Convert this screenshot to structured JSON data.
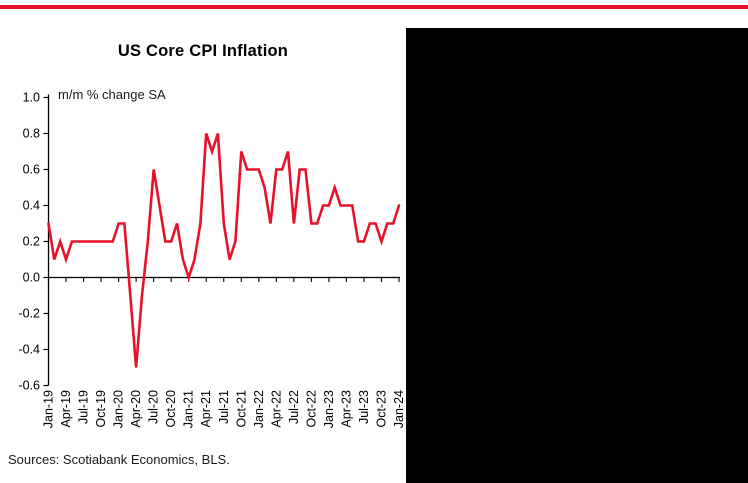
{
  "colors": {
    "accent_red": "#e8112a",
    "panel_black": "#000000",
    "axis_black": "#000000",
    "text": "#1a1a1a"
  },
  "chart": {
    "title": "US Core CPI Inflation",
    "subtitle": "m/m % change SA",
    "source": "Sources: Scotiabank Economics, BLS."
  },
  "chart_data": {
    "type": "line",
    "title": "US Core CPI Inflation",
    "ylabel": "m/m % change SA",
    "ylim": [
      -0.6,
      1.0
    ],
    "grid": false,
    "legend": "none",
    "y_tick_labels": [
      "1.0",
      "0.8",
      "0.6",
      "0.4",
      "0.2",
      "0.0",
      "-0.2",
      "-0.4",
      "-0.6"
    ],
    "x_tick_labels": [
      "Jan-19",
      "Apr-19",
      "Jul-19",
      "Oct-19",
      "Jan-20",
      "Apr-20",
      "Jul-20",
      "Oct-20",
      "Jan-21",
      "Apr-21",
      "Jul-21",
      "Oct-21",
      "Jan-22",
      "Apr-22",
      "Jul-22",
      "Oct-22",
      "Jan-23",
      "Apr-23",
      "Jul-23",
      "Oct-23",
      "Jan-24"
    ],
    "x": [
      "Jan-19",
      "Feb-19",
      "Mar-19",
      "Apr-19",
      "May-19",
      "Jun-19",
      "Jul-19",
      "Aug-19",
      "Sep-19",
      "Oct-19",
      "Nov-19",
      "Dec-19",
      "Jan-20",
      "Feb-20",
      "Mar-20",
      "Apr-20",
      "May-20",
      "Jun-20",
      "Jul-20",
      "Aug-20",
      "Sep-20",
      "Oct-20",
      "Nov-20",
      "Dec-20",
      "Jan-21",
      "Feb-21",
      "Mar-21",
      "Apr-21",
      "May-21",
      "Jun-21",
      "Jul-21",
      "Aug-21",
      "Sep-21",
      "Oct-21",
      "Nov-21",
      "Dec-21",
      "Jan-22",
      "Feb-22",
      "Mar-22",
      "Apr-22",
      "May-22",
      "Jun-22",
      "Jul-22",
      "Aug-22",
      "Sep-22",
      "Oct-22",
      "Nov-22",
      "Dec-22",
      "Jan-23",
      "Feb-23",
      "Mar-23",
      "Apr-23",
      "May-23",
      "Jun-23",
      "Jul-23",
      "Aug-23",
      "Sep-23",
      "Oct-23",
      "Nov-23",
      "Dec-23",
      "Jan-24"
    ],
    "values": [
      0.3,
      0.1,
      0.2,
      0.1,
      0.2,
      0.2,
      0.2,
      0.2,
      0.2,
      0.2,
      0.2,
      0.2,
      0.3,
      0.3,
      -0.1,
      -0.5,
      -0.1,
      0.2,
      0.6,
      0.4,
      0.2,
      0.2,
      0.3,
      0.1,
      0.0,
      0.1,
      0.3,
      0.8,
      0.7,
      0.8,
      0.3,
      0.1,
      0.2,
      0.7,
      0.6,
      0.6,
      0.6,
      0.5,
      0.3,
      0.6,
      0.6,
      0.7,
      0.3,
      0.6,
      0.6,
      0.3,
      0.3,
      0.4,
      0.4,
      0.5,
      0.4,
      0.4,
      0.4,
      0.2,
      0.2,
      0.3,
      0.3,
      0.2,
      0.3,
      0.3,
      0.4
    ],
    "series_color": "#e8112a"
  }
}
